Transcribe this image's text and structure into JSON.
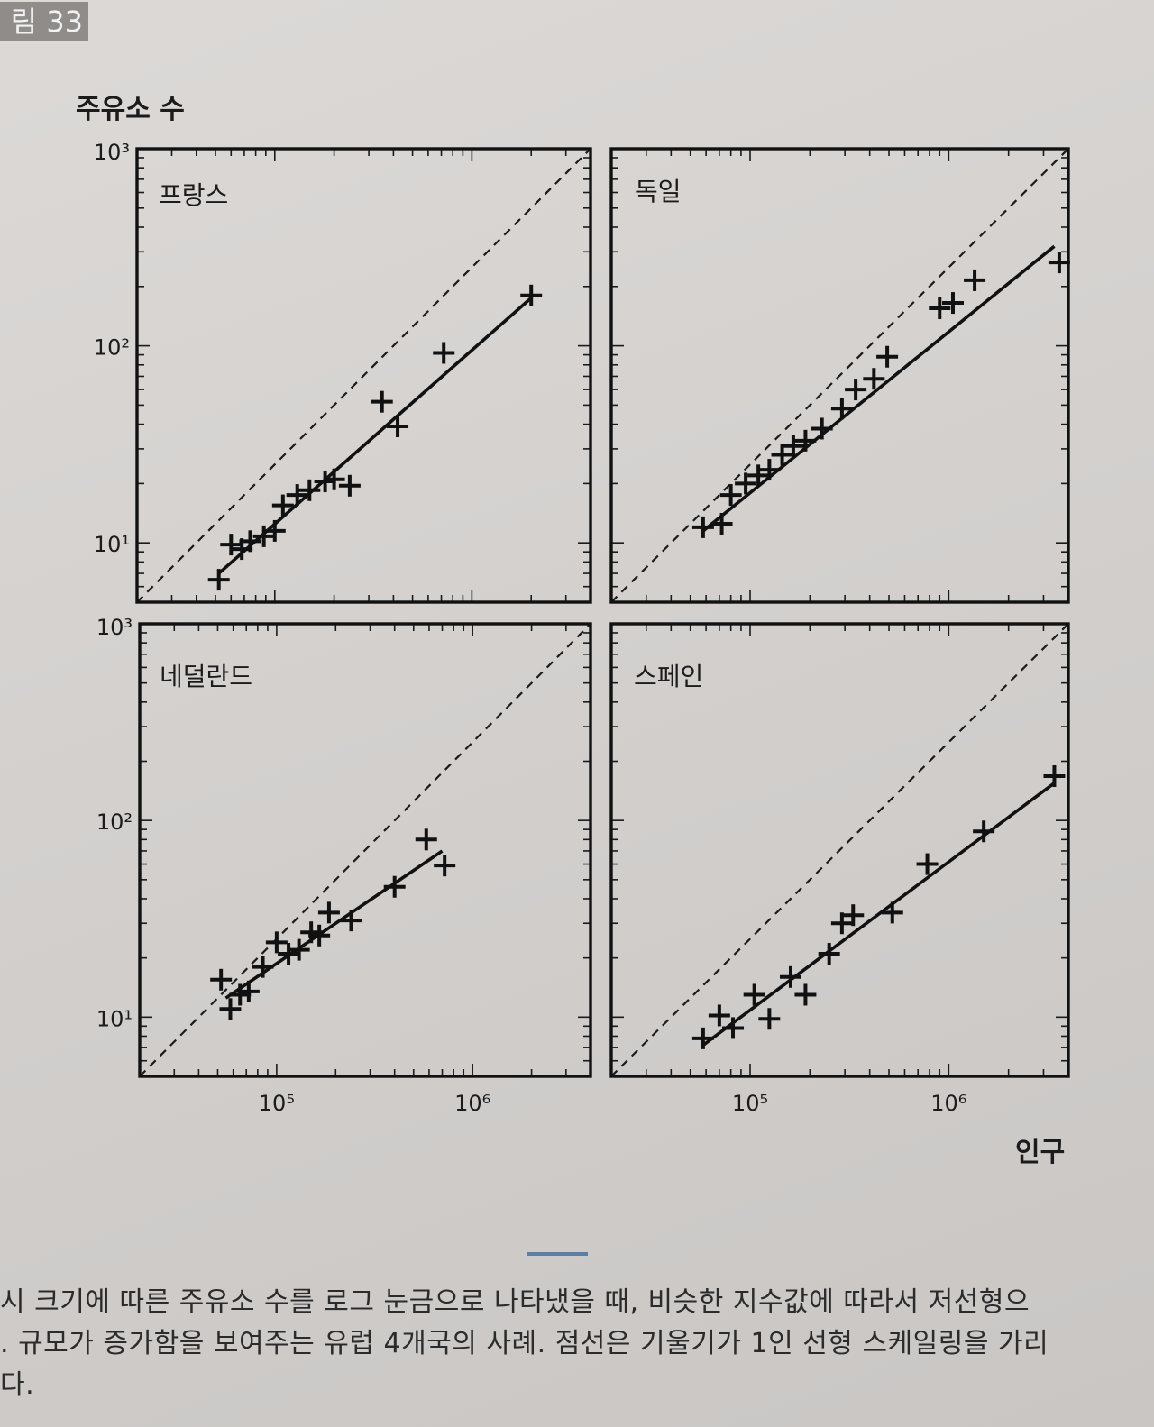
{
  "figure": {
    "label": "림 33"
  },
  "chart_data": {
    "type": "scatter",
    "x_scale": "log",
    "y_scale": "log",
    "ylabel": "주유소 수",
    "xlabel": "인구",
    "xlim": [
      20000,
      4000000
    ],
    "ylim": [
      5,
      1000
    ],
    "y_ticks": [
      {
        "value": 10,
        "label": "10¹"
      },
      {
        "value": 100,
        "label": "10²"
      },
      {
        "value": 1000,
        "label": "10³"
      }
    ],
    "x_ticks": [
      {
        "value": 100000,
        "label": "10⁵"
      },
      {
        "value": 1000000,
        "label": "10⁶"
      }
    ],
    "reference_line": {
      "style": "dashed",
      "slope": 1
    },
    "panels": [
      {
        "name": "프랑스",
        "points": [
          [
            52000,
            6.5
          ],
          [
            60000,
            9.8
          ],
          [
            68000,
            9.3
          ],
          [
            75000,
            10.2
          ],
          [
            88000,
            10.8
          ],
          [
            100000,
            11.5
          ],
          [
            110000,
            15.5
          ],
          [
            130000,
            17.5
          ],
          [
            150000,
            18.5
          ],
          [
            180000,
            20.5
          ],
          [
            200000,
            21.0
          ],
          [
            240000,
            19.5
          ],
          [
            350000,
            52
          ],
          [
            420000,
            39
          ],
          [
            720000,
            92
          ],
          [
            2000000,
            180
          ]
        ],
        "fit": [
          [
            52000,
            7.0
          ],
          [
            2000000,
            175
          ]
        ]
      },
      {
        "name": "독일",
        "points": [
          [
            58000,
            12.0
          ],
          [
            72000,
            12.5
          ],
          [
            80000,
            17.5
          ],
          [
            95000,
            20
          ],
          [
            110000,
            22
          ],
          [
            125000,
            23.5
          ],
          [
            145000,
            28
          ],
          [
            165000,
            31
          ],
          [
            190000,
            33
          ],
          [
            230000,
            38
          ],
          [
            290000,
            48
          ],
          [
            340000,
            60
          ],
          [
            420000,
            68
          ],
          [
            490000,
            88
          ],
          [
            900000,
            155
          ],
          [
            1050000,
            165
          ],
          [
            1350000,
            215
          ],
          [
            3600000,
            265
          ]
        ],
        "fit": [
          [
            58000,
            11.5
          ],
          [
            3400000,
            320
          ]
        ]
      },
      {
        "name": "네덜란드",
        "points": [
          [
            52000,
            15.5
          ],
          [
            58000,
            11.0
          ],
          [
            65000,
            13.0
          ],
          [
            72000,
            13.5
          ],
          [
            85000,
            18
          ],
          [
            100000,
            24
          ],
          [
            115000,
            21
          ],
          [
            130000,
            22
          ],
          [
            150000,
            27
          ],
          [
            165000,
            26
          ],
          [
            185000,
            34
          ],
          [
            240000,
            31
          ],
          [
            400000,
            46
          ],
          [
            580000,
            80
          ],
          [
            720000,
            59
          ]
        ],
        "fit": [
          [
            55000,
            12.5
          ],
          [
            700000,
            70
          ]
        ]
      },
      {
        "name": "스페인",
        "points": [
          [
            58000,
            7.8
          ],
          [
            70000,
            10.2
          ],
          [
            82000,
            8.8
          ],
          [
            105000,
            13
          ],
          [
            125000,
            9.8
          ],
          [
            160000,
            16
          ],
          [
            190000,
            13
          ],
          [
            250000,
            21
          ],
          [
            290000,
            30
          ],
          [
            330000,
            33
          ],
          [
            520000,
            34
          ],
          [
            780000,
            60
          ],
          [
            1500000,
            88
          ],
          [
            3400000,
            168
          ]
        ],
        "fit": [
          [
            58000,
            7.2
          ],
          [
            3400000,
            155
          ]
        ]
      }
    ]
  },
  "caption": {
    "lines": [
      "시 크기에 따른 주유소 수를 로그 눈금으로 나타냈을 때, 비슷한 지수값에 따라서 저선형으",
      ". 규모가 증가함을 보여주는 유럽 4개국의 사례. 점선은 기울기가 1인 선형 스케일링을 가리",
      "다."
    ]
  }
}
